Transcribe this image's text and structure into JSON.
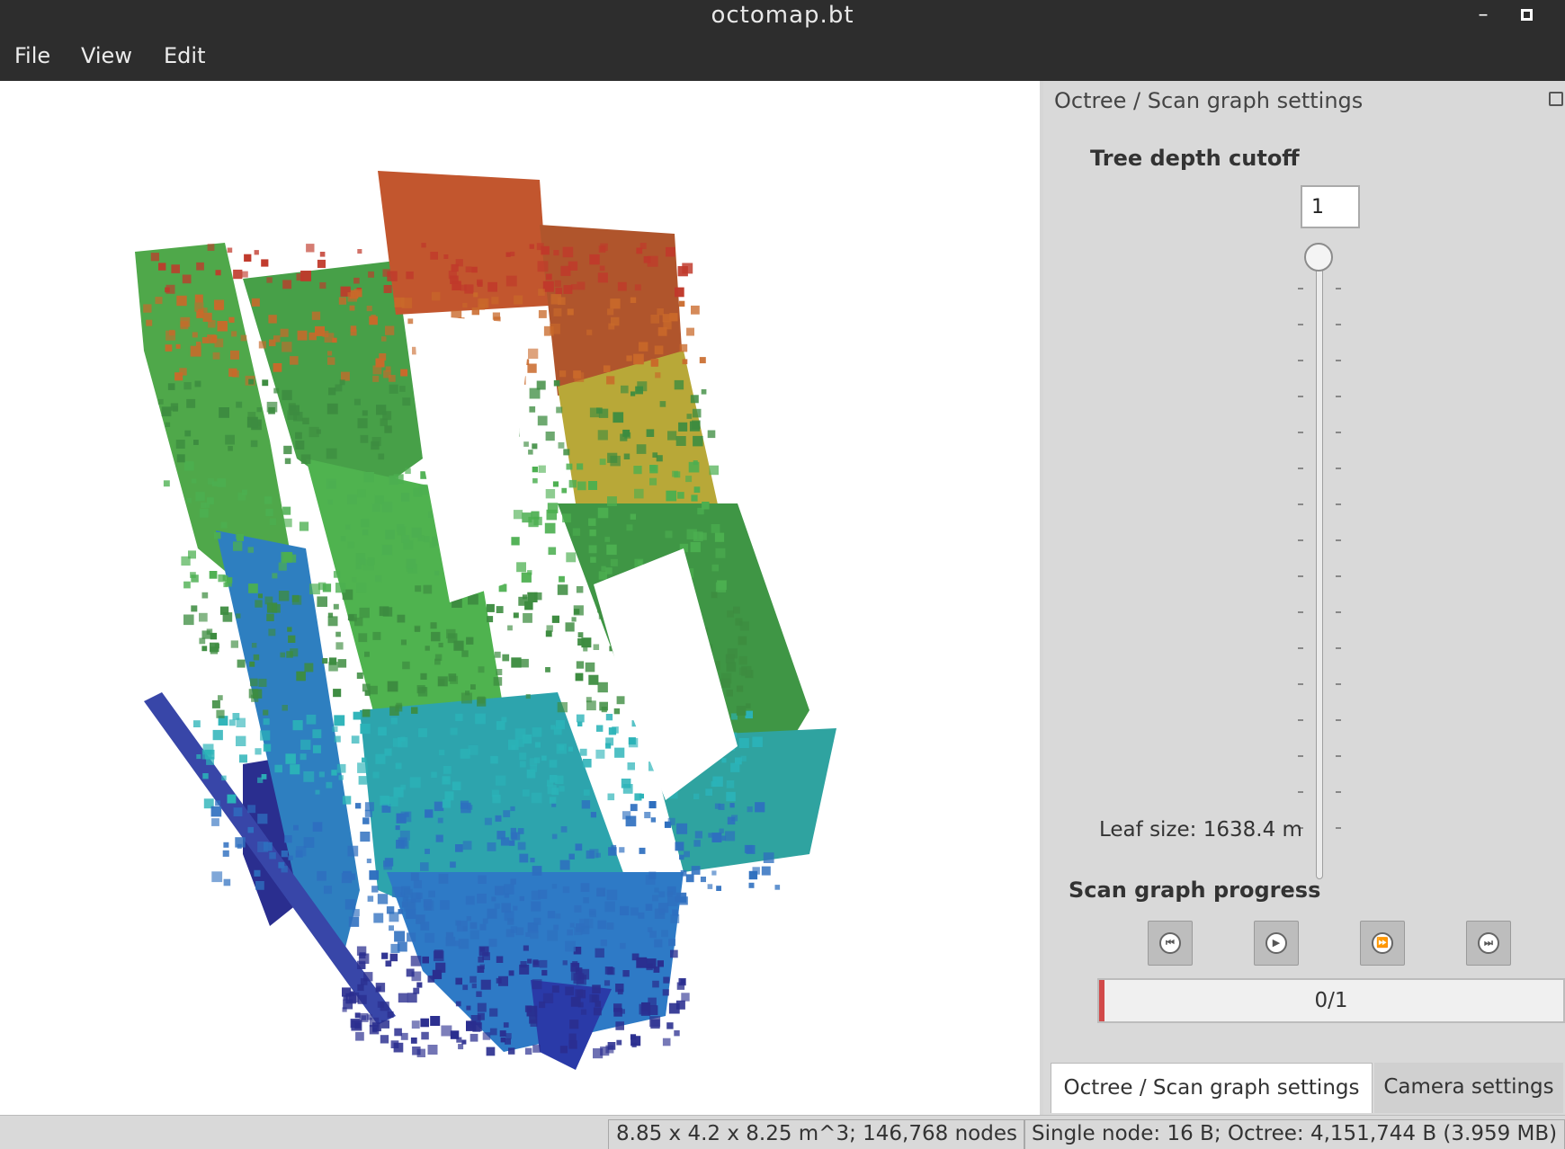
{
  "window": {
    "title": "octomap.bt",
    "minimize_label": "–"
  },
  "menu": {
    "items": [
      "File",
      "View",
      "Edit"
    ]
  },
  "dock": {
    "title": "Octree / Scan graph settings",
    "tree_depth": {
      "label": "Tree depth cutoff",
      "value": "1"
    },
    "leaf_size": "Leaf size:  1638.4 m",
    "scan_graph": {
      "label": "Scan graph progress",
      "buttons": [
        {
          "name": "first",
          "glyph": "⏮"
        },
        {
          "name": "play",
          "glyph": "▶"
        },
        {
          "name": "next",
          "glyph": "⏩"
        },
        {
          "name": "last",
          "glyph": "⏭"
        }
      ],
      "progress_text": "0/1",
      "progress_fraction": 0
    }
  },
  "tabs": [
    "Octree / Scan graph settings",
    "Camera settings"
  ],
  "status": {
    "dimensions": "8.85 x 4.2 x 8.25 m^3; 146,768 nodes",
    "memory": "Single node: 16 B; Octree: 4,151,744 B (3.959 MB)"
  },
  "colors": {
    "red": "#c0392b",
    "orange": "#c9692a",
    "yellow": "#c4c03a",
    "green": "#4caf50",
    "darkgreen": "#3d8c40",
    "cyan": "#2bb3b8",
    "blue": "#2e6fbf",
    "darkblue": "#2a2e8f"
  }
}
